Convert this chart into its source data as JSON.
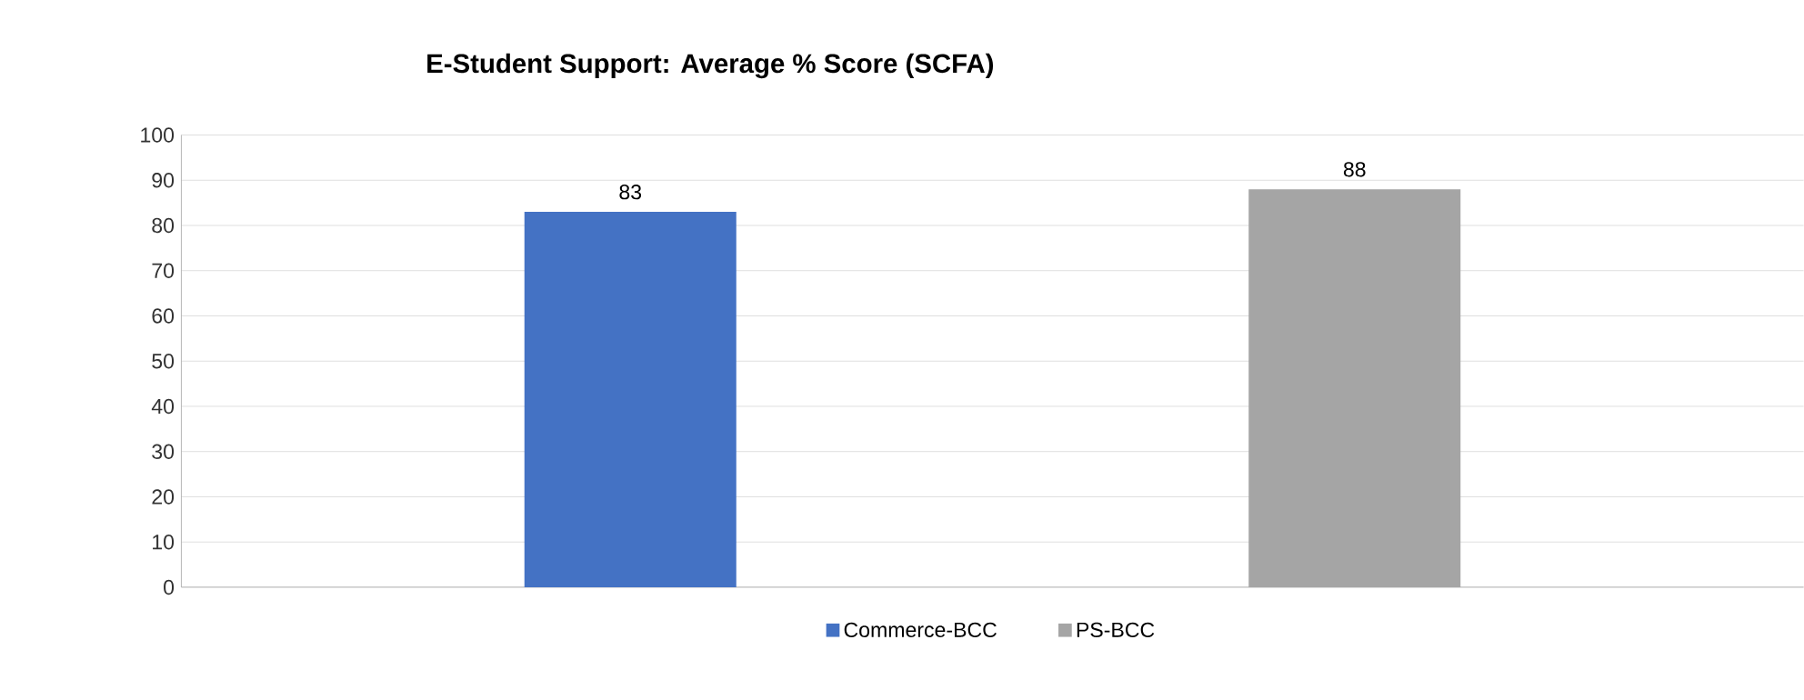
{
  "chart_data": {
    "type": "bar",
    "title": "E-Student Support: Average % Score  (SCFA)",
    "categories": [
      null,
      null
    ],
    "series": [
      {
        "name": "Commerce-BCC",
        "color": "#4472c4",
        "values": [
          83,
          null
        ]
      },
      {
        "name": "PS-BCC",
        "color": "#a5a5a5",
        "values": [
          null,
          88
        ]
      }
    ],
    "ylim": [
      0,
      100
    ],
    "yticks": [
      0,
      10,
      20,
      30,
      40,
      50,
      60,
      70,
      80,
      90,
      100
    ],
    "grid": "y",
    "legend": "bottom",
    "data_labels": true
  }
}
